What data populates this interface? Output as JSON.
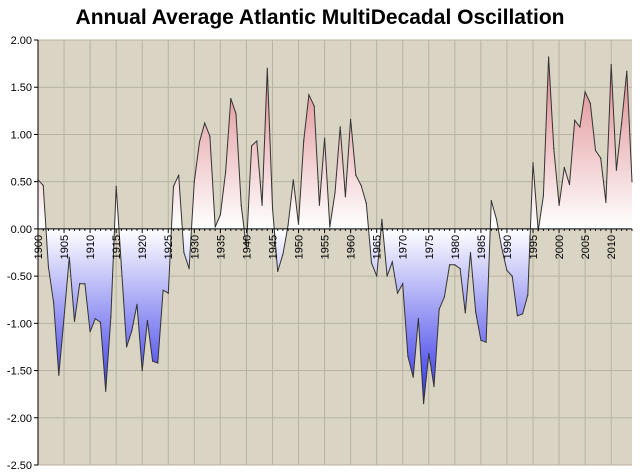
{
  "chart_data": {
    "type": "area",
    "title": "Annual Average Atlantic MultiDecadal Oscillation",
    "xlabel": "",
    "ylabel": "",
    "ylim": [
      -2.5,
      2.0
    ],
    "xlim": [
      1900,
      2014
    ],
    "y_ticks": [
      "2.00",
      "1.50",
      "1.00",
      "0.50",
      "0.00",
      "-0.50",
      "-1.00",
      "-1.50",
      "-2.00",
      "-2.50"
    ],
    "x_ticks": [
      "1900",
      "1905",
      "1910",
      "1915",
      "1920",
      "1925",
      "1930",
      "1935",
      "1940",
      "1945",
      "1950",
      "1955",
      "1960",
      "1965",
      "1970",
      "1975",
      "1980",
      "1985",
      "1990",
      "1995",
      "2000",
      "2005",
      "2010"
    ],
    "grid": true,
    "plot_background": "#d9d4c3",
    "grid_color": "#b7b2a2",
    "positive_color": "#d9777d",
    "negative_color": "#2f2fe8",
    "series": [
      {
        "x": [
          1900,
          1901,
          1902,
          1903,
          1904,
          1905,
          1906,
          1907,
          1908,
          1909,
          1910,
          1911,
          1912,
          1913,
          1914,
          1915,
          1916,
          1917,
          1918,
          1919,
          1920,
          1921,
          1922,
          1923,
          1924,
          1925,
          1926,
          1927,
          1928,
          1929,
          1930,
          1931,
          1932,
          1933,
          1934,
          1935,
          1936,
          1937,
          1938,
          1939,
          1940,
          1941,
          1942,
          1943,
          1944,
          1945,
          1946,
          1947,
          1948,
          1949,
          1950,
          1951,
          1952,
          1953,
          1954,
          1955,
          1956,
          1957,
          1958,
          1959,
          1960,
          1961,
          1962,
          1963,
          1964,
          1965,
          1966,
          1967,
          1968,
          1969,
          1970,
          1971,
          1972,
          1973,
          1974,
          1975,
          1976,
          1977,
          1978,
          1979,
          1980,
          1981,
          1982,
          1983,
          1984,
          1985,
          1986,
          1987,
          1988,
          1989,
          1990,
          1991,
          1992,
          1993,
          1994,
          1995,
          1996,
          1997,
          1998,
          1999,
          2000,
          2001,
          2002,
          2003,
          2004,
          2005,
          2006,
          2007,
          2008,
          2009,
          2010,
          2011,
          2012,
          2013,
          2014
        ],
        "values": [
          0.52,
          0.46,
          -0.4,
          -0.78,
          -1.55,
          -0.93,
          -0.3,
          -0.98,
          -0.58,
          -0.58,
          -1.09,
          -0.95,
          -0.99,
          -1.72,
          -0.93,
          0.45,
          -0.4,
          -1.25,
          -1.08,
          -0.8,
          -1.5,
          -0.97,
          -1.4,
          -1.42,
          -0.65,
          -0.68,
          0.45,
          0.57,
          -0.25,
          -0.42,
          0.5,
          0.92,
          1.12,
          0.98,
          0.02,
          0.15,
          0.6,
          1.38,
          1.22,
          0.25,
          -0.2,
          0.88,
          0.93,
          0.25,
          1.7,
          0.22,
          -0.45,
          -0.27,
          0.04,
          0.52,
          0.05,
          0.93,
          1.42,
          1.3,
          0.25,
          0.96,
          0.02,
          0.38,
          1.08,
          0.34,
          1.16,
          0.57,
          0.46,
          0.27,
          -0.36,
          -0.5,
          0.1,
          -0.5,
          -0.35,
          -0.68,
          -0.58,
          -1.35,
          -1.57,
          -0.95,
          -1.85,
          -1.32,
          -1.67,
          -0.85,
          -0.72,
          -0.38,
          -0.38,
          -0.42,
          -0.89,
          -0.25,
          -0.88,
          -1.18,
          -1.2,
          0.3,
          0.1,
          -0.2,
          -0.44,
          -0.5,
          -0.92,
          -0.9,
          -0.7,
          0.7,
          -0.02,
          0.35,
          1.82,
          0.85,
          0.25,
          0.65,
          0.47,
          1.15,
          1.08,
          1.45,
          1.33,
          0.83,
          0.75,
          0.28,
          1.74,
          0.62,
          1.12,
          1.67,
          0.5
        ]
      }
    ]
  }
}
